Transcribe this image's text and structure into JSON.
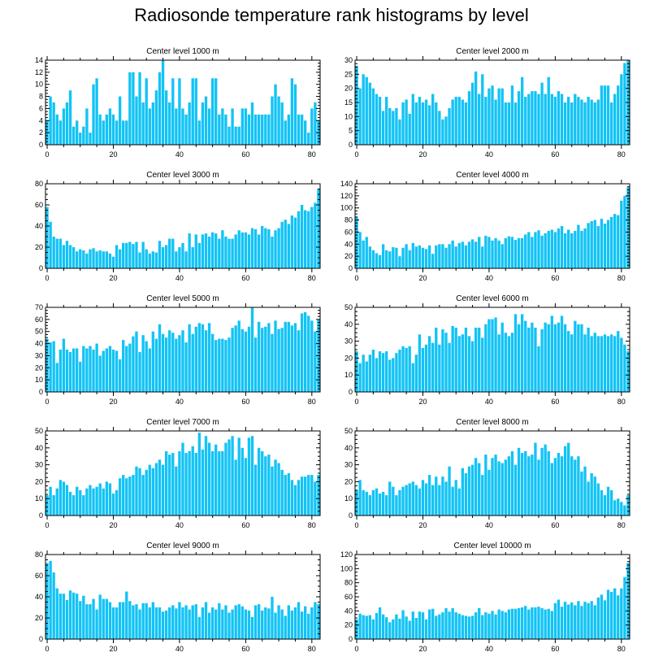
{
  "title": "Radiosonde temperature rank histograms by level",
  "colors": {
    "bar": "#12c3f5",
    "axis": "#000000"
  },
  "chart_data": [
    {
      "type": "bar",
      "title": "Center level 1000 m",
      "xlim": [
        -0.5,
        82.5
      ],
      "ylim": [
        0,
        14
      ],
      "xticks": [
        0,
        20,
        40,
        60,
        80
      ],
      "yticks": [
        0,
        2,
        4,
        6,
        8,
        10,
        12,
        14
      ],
      "values": [
        4,
        8,
        7,
        5,
        4,
        6,
        7,
        9,
        3,
        4,
        2,
        3,
        6,
        2,
        10,
        11,
        5,
        4,
        5,
        6,
        5,
        4,
        8,
        4,
        4,
        12,
        12,
        8,
        12,
        7,
        11,
        6,
        7,
        9,
        12,
        14,
        9,
        7,
        11,
        6,
        11,
        6,
        5,
        7,
        11,
        11,
        4,
        7,
        8,
        6,
        11,
        11,
        5,
        6,
        5,
        3,
        6,
        3,
        3,
        6,
        6,
        5,
        7,
        5,
        5,
        5,
        5,
        5,
        8,
        10,
        8,
        7,
        4,
        5,
        11,
        10,
        5,
        5,
        4,
        2,
        6,
        7,
        4
      ]
    },
    {
      "type": "bar",
      "title": "Center level 2000 m",
      "xlim": [
        -0.5,
        82.5
      ],
      "ylim": [
        0,
        30
      ],
      "xticks": [
        0,
        20,
        40,
        60,
        80
      ],
      "yticks": [
        0,
        5,
        10,
        15,
        20,
        25,
        30
      ],
      "values": [
        28,
        20,
        25,
        24,
        22,
        20,
        18,
        17,
        12,
        17,
        13,
        12,
        13,
        9,
        15,
        16,
        11,
        18,
        15,
        17,
        15,
        16,
        14,
        18,
        15,
        12,
        9,
        10,
        13,
        16,
        17,
        17,
        16,
        15,
        19,
        22,
        26,
        18,
        25,
        17,
        20,
        21,
        16,
        20,
        20,
        15,
        15,
        21,
        15,
        19,
        24,
        17,
        18,
        19,
        19,
        18,
        22,
        18,
        24,
        18,
        17,
        19,
        18,
        15,
        17,
        15,
        18,
        17,
        16,
        15,
        17,
        16,
        15,
        16,
        21,
        21,
        21,
        15,
        18,
        21,
        25,
        29,
        31
      ]
    },
    {
      "type": "bar",
      "title": "Center level 3000 m",
      "xlim": [
        -0.5,
        82.5
      ],
      "ylim": [
        0,
        80
      ],
      "xticks": [
        0,
        20,
        40,
        60,
        80
      ],
      "yticks": [
        0,
        20,
        40,
        60,
        80
      ],
      "values": [
        58,
        44,
        30,
        28,
        28,
        22,
        26,
        22,
        20,
        16,
        18,
        17,
        14,
        18,
        19,
        16,
        17,
        16,
        16,
        14,
        11,
        22,
        18,
        24,
        24,
        25,
        23,
        25,
        15,
        25,
        18,
        14,
        16,
        15,
        26,
        20,
        22,
        28,
        28,
        16,
        20,
        24,
        16,
        33,
        20,
        32,
        24,
        32,
        33,
        30,
        34,
        33,
        28,
        36,
        30,
        28,
        28,
        32,
        36,
        34,
        34,
        32,
        38,
        37,
        32,
        40,
        38,
        37,
        30,
        36,
        38,
        44,
        46,
        42,
        50,
        48,
        54,
        60,
        55,
        54,
        58,
        62,
        75
      ]
    },
    {
      "type": "bar",
      "title": "Center level 4000 m",
      "xlim": [
        -0.5,
        82.5
      ],
      "ylim": [
        0,
        140
      ],
      "xticks": [
        0,
        20,
        40,
        60,
        80
      ],
      "yticks": [
        0,
        20,
        40,
        60,
        80,
        100,
        120,
        140
      ],
      "values": [
        85,
        60,
        46,
        52,
        36,
        30,
        25,
        22,
        40,
        30,
        28,
        35,
        34,
        20,
        34,
        40,
        30,
        42,
        36,
        38,
        34,
        32,
        38,
        24,
        38,
        40,
        40,
        34,
        40,
        46,
        36,
        42,
        44,
        38,
        44,
        48,
        44,
        52,
        36,
        54,
        52,
        46,
        50,
        46,
        40,
        50,
        53,
        52,
        47,
        50,
        50,
        56,
        60,
        52,
        60,
        63,
        54,
        58,
        62,
        64,
        60,
        66,
        70,
        58,
        64,
        58,
        62,
        72,
        62,
        66,
        75,
        78,
        80,
        70,
        82,
        74,
        80,
        85,
        90,
        88,
        112,
        120,
        134
      ]
    },
    {
      "type": "bar",
      "title": "Center level 5000 m",
      "xlim": [
        -0.5,
        82.5
      ],
      "ylim": [
        0,
        70
      ],
      "xticks": [
        0,
        20,
        40,
        60,
        80
      ],
      "yticks": [
        0,
        10,
        20,
        30,
        40,
        50,
        60,
        70
      ],
      "values": [
        44,
        41,
        42,
        24,
        35,
        44,
        35,
        33,
        36,
        36,
        25,
        38,
        36,
        38,
        35,
        40,
        30,
        34,
        36,
        38,
        35,
        34,
        27,
        43,
        38,
        40,
        46,
        50,
        33,
        47,
        42,
        36,
        50,
        44,
        56,
        48,
        45,
        51,
        49,
        44,
        47,
        51,
        41,
        56,
        48,
        54,
        57,
        56,
        51,
        57,
        48,
        43,
        44,
        44,
        43,
        45,
        53,
        55,
        59,
        52,
        50,
        54,
        71,
        45,
        58,
        53,
        54,
        57,
        48,
        59,
        52,
        53,
        58,
        58,
        55,
        57,
        51,
        65,
        66,
        63,
        59,
        50,
        60
      ]
    },
    {
      "type": "bar",
      "title": "Center level 6000 m",
      "xlim": [
        -0.5,
        82.5
      ],
      "ylim": [
        0,
        50
      ],
      "xticks": [
        0,
        20,
        40,
        60,
        80
      ],
      "yticks": [
        0,
        10,
        20,
        30,
        40,
        50
      ],
      "values": [
        24,
        17,
        22,
        18,
        22,
        25,
        20,
        24,
        23,
        24,
        19,
        20,
        23,
        25,
        27,
        26,
        27,
        17,
        22,
        34,
        26,
        28,
        33,
        29,
        38,
        28,
        37,
        35,
        29,
        39,
        38,
        33,
        34,
        38,
        33,
        30,
        38,
        38,
        32,
        40,
        43,
        43,
        44,
        34,
        41,
        35,
        33,
        35,
        46,
        40,
        46,
        42,
        38,
        41,
        38,
        27,
        37,
        41,
        40,
        45,
        40,
        41,
        45,
        40,
        36,
        34,
        42,
        40,
        40,
        34,
        38,
        33,
        35,
        33,
        33,
        34,
        33,
        34,
        33,
        36,
        32,
        28,
        24
      ]
    },
    {
      "type": "bar",
      "title": "Center level 7000 m",
      "xlim": [
        -0.5,
        82.5
      ],
      "ylim": [
        0,
        50
      ],
      "xticks": [
        0,
        20,
        40,
        60,
        80
      ],
      "yticks": [
        0,
        10,
        20,
        30,
        40,
        50
      ],
      "values": [
        12,
        17,
        12,
        16,
        21,
        20,
        18,
        14,
        12,
        17,
        15,
        12,
        16,
        18,
        16,
        17,
        19,
        16,
        20,
        19,
        13,
        15,
        22,
        24,
        22,
        23,
        24,
        29,
        28,
        24,
        27,
        30,
        28,
        31,
        33,
        30,
        38,
        36,
        37,
        29,
        38,
        43,
        37,
        38,
        41,
        37,
        49,
        39,
        47,
        43,
        38,
        42,
        38,
        38,
        43,
        45,
        47,
        33,
        46,
        40,
        34,
        46,
        47,
        30,
        40,
        38,
        35,
        36,
        29,
        33,
        31,
        27,
        24,
        25,
        21,
        18,
        21,
        23,
        23,
        24,
        24,
        20,
        24
      ]
    },
    {
      "type": "bar",
      "title": "Center level 8000 m",
      "xlim": [
        -0.5,
        82.5
      ],
      "ylim": [
        0,
        50
      ],
      "xticks": [
        0,
        20,
        40,
        60,
        80
      ],
      "yticks": [
        0,
        10,
        20,
        30,
        40,
        50
      ],
      "values": [
        15,
        21,
        15,
        14,
        12,
        15,
        16,
        13,
        14,
        12,
        20,
        17,
        12,
        15,
        17,
        18,
        19,
        20,
        18,
        16,
        21,
        19,
        24,
        18,
        23,
        18,
        23,
        20,
        29,
        17,
        21,
        16,
        28,
        25,
        29,
        30,
        34,
        31,
        24,
        36,
        27,
        34,
        36,
        32,
        31,
        33,
        35,
        38,
        30,
        40,
        37,
        38,
        35,
        36,
        43,
        33,
        40,
        42,
        38,
        31,
        34,
        37,
        35,
        41,
        43,
        35,
        33,
        35,
        26,
        29,
        20,
        25,
        23,
        19,
        15,
        12,
        17,
        15,
        9,
        10,
        8,
        6,
        12
      ]
    },
    {
      "type": "bar",
      "title": "Center level 9000 m",
      "xlim": [
        -0.5,
        82.5
      ],
      "ylim": [
        0,
        80
      ],
      "xticks": [
        0,
        20,
        40,
        60,
        80
      ],
      "yticks": [
        0,
        20,
        40,
        60,
        80
      ],
      "values": [
        72,
        74,
        63,
        48,
        43,
        43,
        37,
        46,
        44,
        43,
        36,
        41,
        33,
        33,
        38,
        28,
        42,
        38,
        38,
        35,
        30,
        30,
        35,
        35,
        45,
        36,
        32,
        33,
        28,
        34,
        34,
        30,
        35,
        30,
        30,
        26,
        27,
        30,
        32,
        29,
        35,
        30,
        32,
        28,
        32,
        33,
        21,
        30,
        35,
        25,
        30,
        28,
        34,
        28,
        32,
        25,
        28,
        32,
        33,
        31,
        28,
        27,
        21,
        32,
        33,
        27,
        30,
        29,
        40,
        25,
        32,
        28,
        22,
        32,
        27,
        30,
        35,
        26,
        31,
        24,
        30,
        35,
        33
      ]
    },
    {
      "type": "bar",
      "title": "Center level 10000 m",
      "xlim": [
        -0.5,
        82.5
      ],
      "ylim": [
        0,
        120
      ],
      "xticks": [
        0,
        20,
        40,
        60,
        80
      ],
      "yticks": [
        0,
        20,
        40,
        60,
        80,
        100,
        120
      ],
      "values": [
        28,
        36,
        34,
        33,
        34,
        28,
        37,
        45,
        35,
        31,
        24,
        28,
        35,
        29,
        41,
        32,
        26,
        39,
        30,
        39,
        38,
        28,
        42,
        43,
        33,
        35,
        38,
        44,
        39,
        44,
        38,
        36,
        34,
        33,
        32,
        33,
        38,
        44,
        34,
        38,
        36,
        40,
        35,
        42,
        40,
        38,
        42,
        43,
        43,
        44,
        45,
        47,
        42,
        45,
        45,
        46,
        44,
        42,
        43,
        40,
        51,
        56,
        46,
        53,
        49,
        52,
        48,
        54,
        47,
        53,
        51,
        54,
        48,
        59,
        63,
        55,
        70,
        67,
        72,
        62,
        72,
        88,
        108
      ]
    }
  ]
}
